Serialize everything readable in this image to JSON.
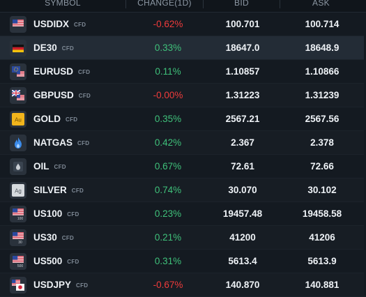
{
  "header": {
    "symbol": "SYMBOL",
    "change": "CHANGE(1D)",
    "bid": "BID",
    "ask": "ASK"
  },
  "colors": {
    "positive": "#3fc07a",
    "negative": "#ef3b3b",
    "background": "#141a21",
    "selected_row": "#232c36"
  },
  "rows": [
    {
      "symbol": "USDIDX",
      "tag": "CFD",
      "change": "-0.62%",
      "dir": "neg",
      "bid": "100.701",
      "ask": "100.714",
      "icon": "us-flag-index-icon"
    },
    {
      "symbol": "DE30",
      "tag": "CFD",
      "change": "0.33%",
      "dir": "pos",
      "bid": "18647.0",
      "ask": "18648.9",
      "icon": "germany-flag-icon",
      "selected": true
    },
    {
      "symbol": "EURUSD",
      "tag": "CFD",
      "change": "0.11%",
      "dir": "pos",
      "bid": "1.10857",
      "ask": "1.10866",
      "icon": "eu-us-flag-icon"
    },
    {
      "symbol": "GBPUSD",
      "tag": "CFD",
      "change": "-0.00%",
      "dir": "neg",
      "bid": "1.31223",
      "ask": "1.31239",
      "icon": "uk-us-flag-icon"
    },
    {
      "symbol": "GOLD",
      "tag": "CFD",
      "change": "0.35%",
      "dir": "pos",
      "bid": "2567.21",
      "ask": "2567.56",
      "icon": "gold-au-icon"
    },
    {
      "symbol": "NATGAS",
      "tag": "CFD",
      "change": "0.42%",
      "dir": "pos",
      "bid": "2.367",
      "ask": "2.378",
      "icon": "gas-flame-icon"
    },
    {
      "symbol": "OIL",
      "tag": "CFD",
      "change": "0.67%",
      "dir": "pos",
      "bid": "72.61",
      "ask": "72.66",
      "icon": "oil-drop-icon"
    },
    {
      "symbol": "SILVER",
      "tag": "CFD",
      "change": "0.74%",
      "dir": "pos",
      "bid": "30.070",
      "ask": "30.102",
      "icon": "silver-ag-icon"
    },
    {
      "symbol": "US100",
      "tag": "CFD",
      "change": "0.23%",
      "dir": "pos",
      "bid": "19457.48",
      "ask": "19458.58",
      "icon": "us-flag-100-icon"
    },
    {
      "symbol": "US30",
      "tag": "CFD",
      "change": "0.21%",
      "dir": "pos",
      "bid": "41200",
      "ask": "41206",
      "icon": "us-flag-30-icon"
    },
    {
      "symbol": "US500",
      "tag": "CFD",
      "change": "0.31%",
      "dir": "pos",
      "bid": "5613.4",
      "ask": "5613.9",
      "icon": "us-flag-500-icon"
    },
    {
      "symbol": "USDJPY",
      "tag": "CFD",
      "change": "-0.67%",
      "dir": "neg",
      "bid": "140.870",
      "ask": "140.881",
      "icon": "us-japan-flag-icon"
    }
  ],
  "icon_labels": {
    "us100": "100",
    "us30": "30",
    "us500": "500",
    "gold": "Au",
    "silver": "Ag"
  }
}
